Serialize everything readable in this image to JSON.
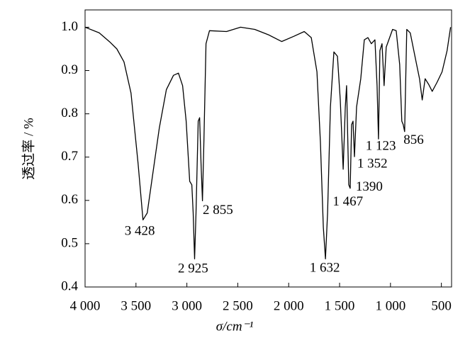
{
  "chart_data": {
    "type": "line",
    "xlabel": "σ/cm⁻¹",
    "ylabel": "透过率 / %",
    "xlim": [
      4000,
      400
    ],
    "ylim": [
      0.4,
      1.04
    ],
    "xticks": [
      {
        "value": 4000,
        "label": "4 000"
      },
      {
        "value": 3500,
        "label": "3 500"
      },
      {
        "value": 3000,
        "label": "3 000"
      },
      {
        "value": 2500,
        "label": "2 500"
      },
      {
        "value": 2000,
        "label": "2 000"
      },
      {
        "value": 1500,
        "label": "1 500"
      },
      {
        "value": 1000,
        "label": "1 000"
      },
      500
    ],
    "yticks": [
      0.4,
      0.5,
      0.6,
      0.7,
      0.8,
      0.9,
      {
        "value": 1,
        "label": "1.0"
      }
    ],
    "series": [
      {
        "color": "#000000",
        "x": [
          4000,
          3861,
          3757,
          3688,
          3618,
          3549,
          3479,
          3431,
          3389,
          3340,
          3271,
          3201,
          3132,
          3083,
          3042,
          3007,
          2972,
          2951,
          2938,
          2924,
          2910,
          2889,
          2875,
          2861,
          2847,
          2833,
          2812,
          2778,
          2611,
          2472,
          2333,
          2194,
          2069,
          1951,
          1847,
          1778,
          1722,
          1688,
          1660,
          1639,
          1618,
          1590,
          1556,
          1521,
          1493,
          1465,
          1444,
          1431,
          1410,
          1396,
          1382,
          1368,
          1354,
          1333,
          1292,
          1257,
          1222,
          1188,
          1153,
          1132,
          1118,
          1104,
          1083,
          1063,
          1042,
          979,
          944,
          910,
          889,
          875,
          861,
          840,
          806,
          750,
          715,
          688,
          660,
          625,
          590,
          542,
          493,
          444,
          410
        ],
        "values": [
          1.0,
          0.987,
          0.966,
          0.95,
          0.92,
          0.848,
          0.685,
          0.555,
          0.571,
          0.653,
          0.767,
          0.856,
          0.889,
          0.894,
          0.865,
          0.783,
          0.644,
          0.636,
          0.571,
          0.465,
          0.571,
          0.783,
          0.791,
          0.685,
          0.599,
          0.734,
          0.962,
          0.992,
          0.99,
          1.0,
          0.995,
          0.982,
          0.967,
          0.979,
          0.99,
          0.976,
          0.897,
          0.734,
          0.538,
          0.465,
          0.571,
          0.816,
          0.943,
          0.933,
          0.832,
          0.672,
          0.816,
          0.865,
          0.636,
          0.628,
          0.775,
          0.783,
          0.701,
          0.816,
          0.881,
          0.971,
          0.976,
          0.962,
          0.971,
          0.865,
          0.742,
          0.946,
          0.962,
          0.865,
          0.954,
          0.995,
          0.992,
          0.914,
          0.783,
          0.775,
          0.759,
          0.995,
          0.987,
          0.922,
          0.881,
          0.832,
          0.881,
          0.868,
          0.852,
          0.873,
          0.897,
          0.946,
          1.0
        ]
      }
    ],
    "annotations": [
      {
        "label": "3 428",
        "x": 3428,
        "y": 0.555
      },
      {
        "label": "2 925",
        "x": 2925,
        "y": 0.465
      },
      {
        "label": "2 855",
        "x": 2855,
        "y": 0.599
      },
      {
        "label": "1 632",
        "x": 1632,
        "y": 0.465
      },
      {
        "label": "1 467",
        "x": 1467,
        "y": 0.672
      },
      {
        "label": "1390",
        "x": 1390,
        "y": 0.628
      },
      {
        "label": "1 352",
        "x": 1352,
        "y": 0.701
      },
      {
        "label": "1 123",
        "x": 1123,
        "y": 0.742
      },
      {
        "label": "856",
        "x": 856,
        "y": 0.759
      }
    ]
  }
}
